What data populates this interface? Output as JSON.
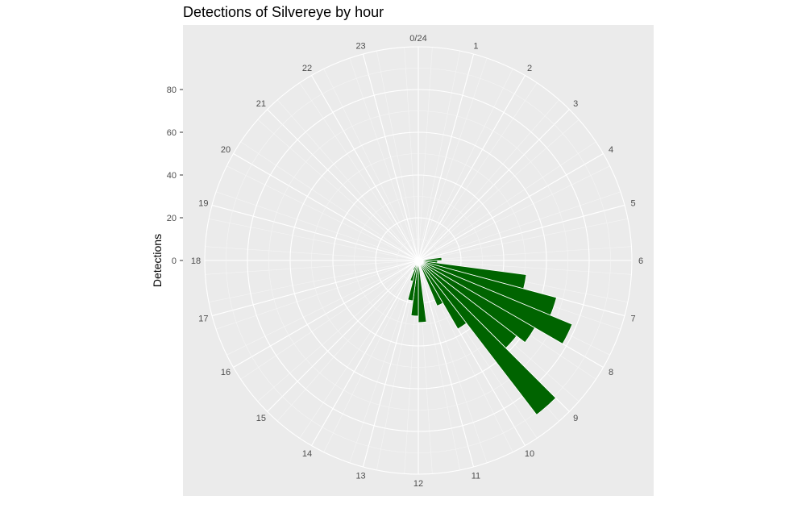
{
  "chart_data": {
    "type": "bar",
    "coord": "polar",
    "title": "Detections of Silvereye by hour",
    "xlabel": "",
    "ylabel": "Detections",
    "hour_labels": [
      "0/24",
      "1",
      "2",
      "3",
      "4",
      "5",
      "6",
      "7",
      "8",
      "9",
      "10",
      "11",
      "12",
      "13",
      "14",
      "15",
      "16",
      "17",
      "18",
      "19",
      "20",
      "21",
      "22",
      "23"
    ],
    "y_ticks": [
      "0",
      "20",
      "40",
      "60",
      "80"
    ],
    "ylim": [
      0,
      100
    ],
    "bin_width_hours": 0.5,
    "bar_color": "#006400",
    "panel_background": "#ebebeb",
    "grid": true,
    "bars": [
      {
        "hour": 5.5,
        "value": 11
      },
      {
        "hour": 6.0,
        "value": 9
      },
      {
        "hour": 6.5,
        "value": 51
      },
      {
        "hour": 7.0,
        "value": 67
      },
      {
        "hour": 7.5,
        "value": 78
      },
      {
        "hour": 8.0,
        "value": 63
      },
      {
        "hour": 8.5,
        "value": 58
      },
      {
        "hour": 9.0,
        "value": 91
      },
      {
        "hour": 9.5,
        "value": 37
      },
      {
        "hour": 10.0,
        "value": 23
      },
      {
        "hour": 11.5,
        "value": 29
      },
      {
        "hour": 12.0,
        "value": 26
      },
      {
        "hour": 12.5,
        "value": 19
      },
      {
        "hour": 13.0,
        "value": 10
      },
      {
        "hour": 13.5,
        "value": 5
      },
      {
        "hour": 14.0,
        "value": 2
      }
    ]
  }
}
